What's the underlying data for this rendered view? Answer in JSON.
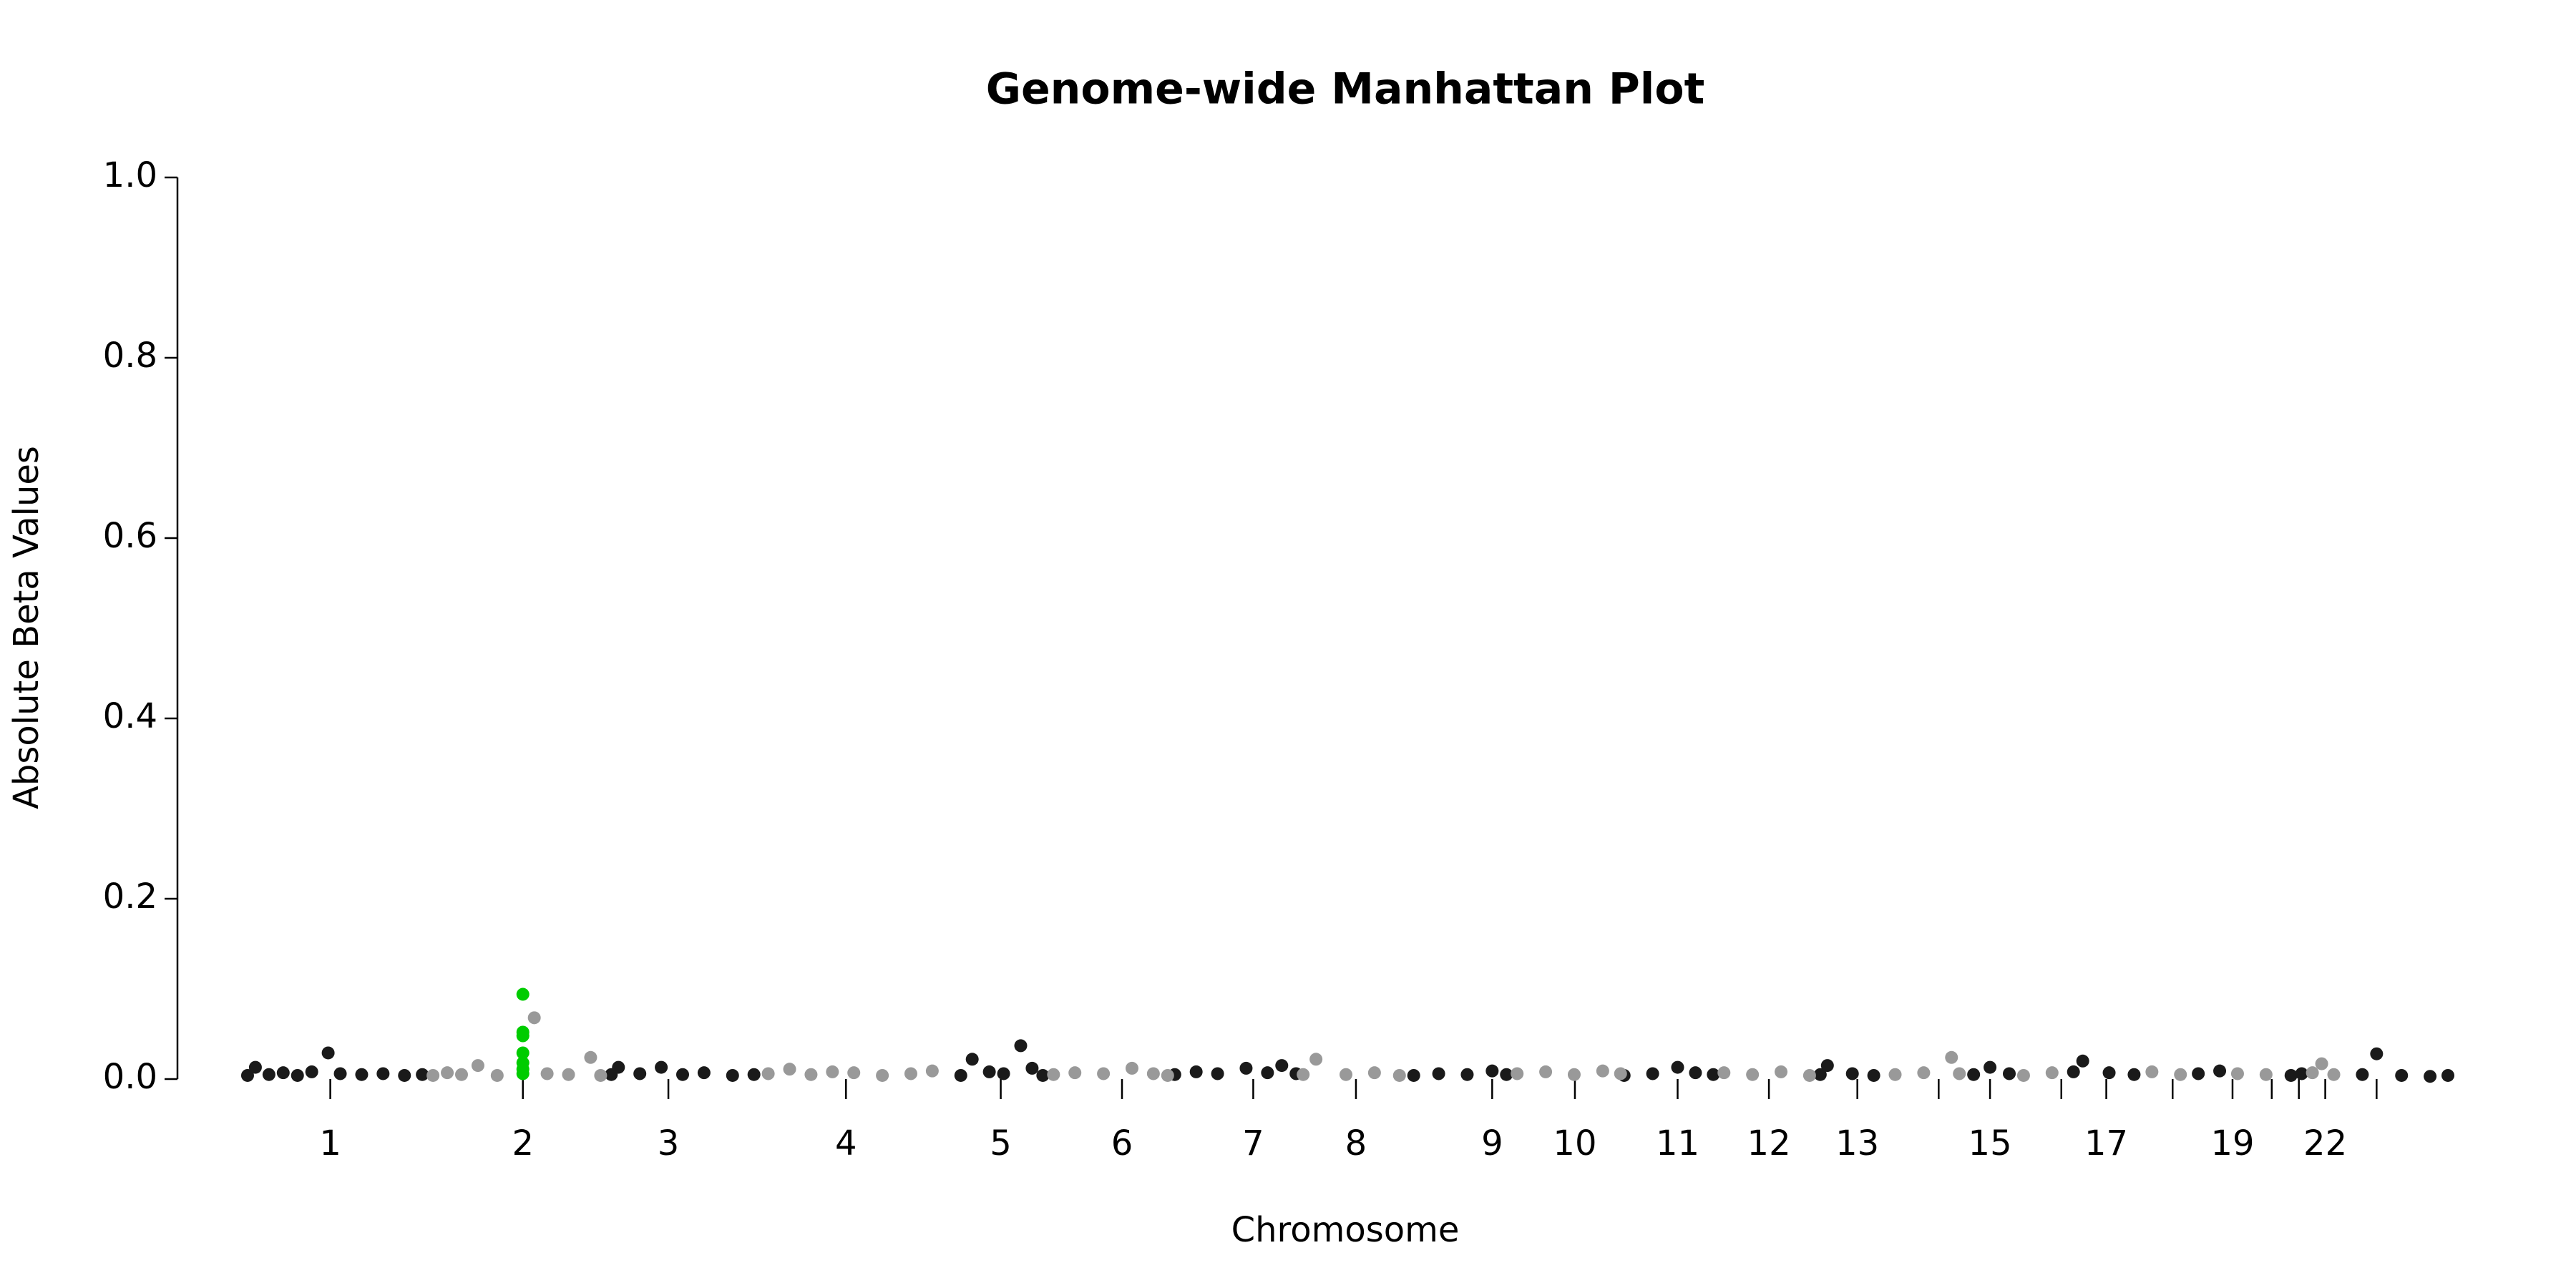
{
  "chart_data": {
    "type": "scatter",
    "title": "Genome-wide Manhattan Plot",
    "x_label": "Chromosome",
    "y_label": "Absolute Beta Values",
    "xlim": [
      0,
      3100
    ],
    "ylim": [
      0,
      1
    ],
    "xticks": [
      {
        "value": 126,
        "label": "1"
      },
      {
        "value": 396,
        "label": "2"
      },
      {
        "value": 600,
        "label": "3"
      },
      {
        "value": 849,
        "label": "4"
      },
      {
        "value": 1066,
        "label": "5"
      },
      {
        "value": 1236,
        "label": "6"
      },
      {
        "value": 1420,
        "label": "7"
      },
      {
        "value": 1564,
        "label": "8"
      },
      {
        "value": 1755,
        "label": "9"
      },
      {
        "value": 1871,
        "label": "10"
      },
      {
        "value": 2015,
        "label": "11"
      },
      {
        "value": 2143,
        "label": "12"
      },
      {
        "value": 2267,
        "label": "13"
      },
      {
        "value": 2381,
        "label": null
      },
      {
        "value": 2453,
        "label": "15"
      },
      {
        "value": 2553,
        "label": null
      },
      {
        "value": 2616,
        "label": "17"
      },
      {
        "value": 2709,
        "label": null
      },
      {
        "value": 2793,
        "label": "19"
      },
      {
        "value": 2848,
        "label": null
      },
      {
        "value": 2886,
        "label": null
      },
      {
        "value": 2923,
        "label": "22"
      },
      {
        "value": 2995,
        "label": null
      }
    ],
    "yticks": [
      {
        "value": 0,
        "label": "0.0"
      },
      0.2,
      0.4,
      0.6,
      0.8,
      {
        "value": 1,
        "label": "1.0"
      }
    ],
    "series": [
      {
        "color": "#1a1a1a",
        "x": [
          10,
          21,
          40,
          60,
          80,
          100,
          123,
          140,
          170,
          200,
          230,
          255,
          520,
          530,
          560,
          590,
          620,
          650,
          690,
          720,
          1010,
          1026,
          1050,
          1070,
          1094,
          1110,
          1125,
          1310,
          1340,
          1370,
          1410,
          1440,
          1460,
          1480,
          1645,
          1680,
          1720,
          1755,
          1775,
          1940,
          1980,
          2015,
          2040,
          2065,
          2215,
          2225,
          2260,
          2290,
          2430,
          2453,
          2480,
          2570,
          2583,
          2620,
          2655,
          2745,
          2775,
          2875,
          2890,
          2975,
          2995,
          3030,
          3070,
          3095
        ],
        "values": [
          0.004,
          0.013,
          0.005,
          0.007,
          0.004,
          0.008,
          0.029,
          0.006,
          0.005,
          0.006,
          0.004,
          0.005,
          0.005,
          0.013,
          0.006,
          0.013,
          0.005,
          0.007,
          0.004,
          0.005,
          0.004,
          0.022,
          0.008,
          0.006,
          0.037,
          0.012,
          0.004,
          0.005,
          0.008,
          0.006,
          0.012,
          0.007,
          0.015,
          0.006,
          0.004,
          0.006,
          0.005,
          0.009,
          0.005,
          0.004,
          0.006,
          0.013,
          0.007,
          0.005,
          0.005,
          0.015,
          0.006,
          0.004,
          0.005,
          0.013,
          0.006,
          0.008,
          0.02,
          0.007,
          0.005,
          0.006,
          0.009,
          0.004,
          0.006,
          0.005,
          0.028,
          0.004,
          0.003,
          0.004
        ]
      },
      {
        "color": "#999999",
        "x": [
          270,
          290,
          310,
          333,
          360,
          412,
          430,
          460,
          491,
          505,
          740,
          770,
          800,
          830,
          860,
          900,
          940,
          970,
          1140,
          1170,
          1210,
          1250,
          1280,
          1300,
          1490,
          1508,
          1550,
          1590,
          1625,
          1790,
          1830,
          1870,
          1910,
          1935,
          2080,
          2120,
          2160,
          2200,
          2320,
          2360,
          2399,
          2410,
          2500,
          2540,
          2680,
          2720,
          2800,
          2840,
          2905,
          2918,
          2935
        ],
        "values": [
          0.004,
          0.007,
          0.005,
          0.015,
          0.004,
          0.068,
          0.006,
          0.005,
          0.024,
          0.004,
          0.006,
          0.011,
          0.005,
          0.008,
          0.007,
          0.004,
          0.006,
          0.009,
          0.005,
          0.007,
          0.006,
          0.012,
          0.006,
          0.004,
          0.005,
          0.022,
          0.005,
          0.007,
          0.004,
          0.006,
          0.008,
          0.005,
          0.009,
          0.006,
          0.007,
          0.005,
          0.008,
          0.004,
          0.005,
          0.007,
          0.024,
          0.006,
          0.004,
          0.007,
          0.008,
          0.005,
          0.006,
          0.005,
          0.007,
          0.017,
          0.005
        ]
      },
      {
        "color": "#00cc00",
        "x": [
          396,
          396,
          396,
          396,
          396,
          396,
          396
        ],
        "values": [
          0.094,
          0.052,
          0.048,
          0.029,
          0.018,
          0.011,
          0.006
        ]
      }
    ]
  }
}
